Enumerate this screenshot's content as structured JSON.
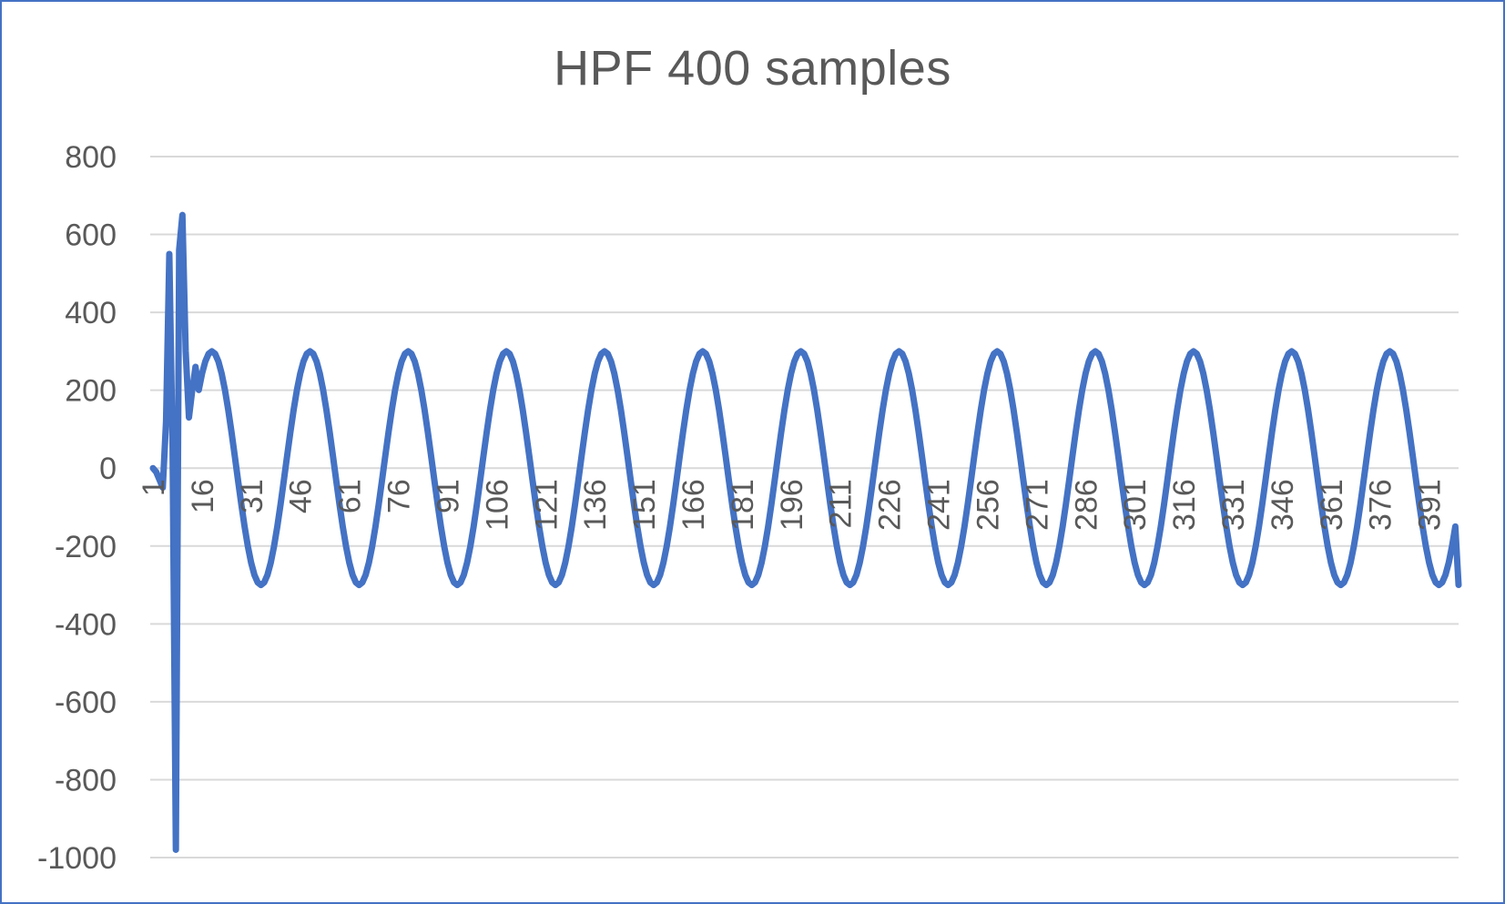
{
  "chart_data": {
    "type": "line",
    "title": "HPF 400 samples",
    "xlabel": "",
    "ylabel": "",
    "ylim": [
      -1000,
      800
    ],
    "y_ticks": [
      800,
      600,
      400,
      200,
      0,
      -200,
      -400,
      -600,
      -800,
      -1000
    ],
    "x_tick_labels": [
      1,
      16,
      31,
      46,
      61,
      76,
      91,
      106,
      121,
      136,
      151,
      166,
      181,
      196,
      211,
      226,
      241,
      256,
      271,
      286,
      301,
      316,
      331,
      346,
      361,
      376,
      391
    ],
    "x_count": 400,
    "grid": true,
    "legend": "none",
    "series": [
      {
        "color": "#4472c4",
        "transient": [
          [
            1,
            0
          ],
          [
            2,
            -10
          ],
          [
            3,
            -30
          ],
          [
            4,
            -50
          ],
          [
            5,
            120
          ],
          [
            6,
            550
          ],
          [
            7,
            50
          ],
          [
            8,
            -980
          ],
          [
            9,
            560
          ],
          [
            10,
            650
          ],
          [
            11,
            300
          ],
          [
            12,
            130
          ],
          [
            13,
            200
          ],
          [
            14,
            260
          ]
        ],
        "steady_state": {
          "amplitude": 300,
          "period": 30,
          "peak_at": [
            19,
            49,
            79,
            109,
            139,
            169,
            199,
            229,
            259,
            289,
            319,
            349,
            379
          ],
          "trough_at": [
            34,
            64,
            94,
            124,
            154,
            184,
            214,
            244,
            274,
            304,
            334,
            364,
            394
          ],
          "end_value": -300
        }
      }
    ]
  }
}
